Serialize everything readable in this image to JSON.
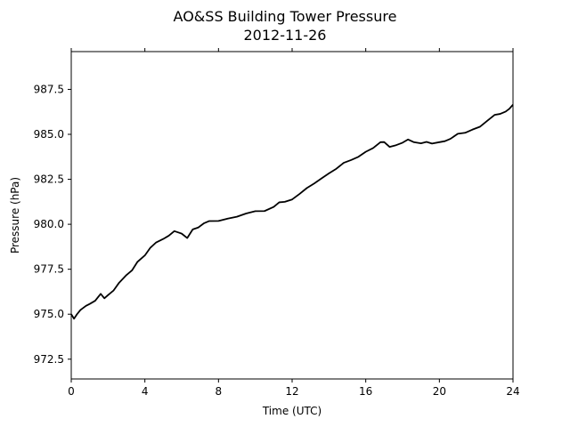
{
  "chart_data": {
    "type": "line",
    "title": "AO&SS Building Tower Pressure",
    "subtitle": "2012-11-26",
    "xlabel": "Time (UTC)",
    "ylabel": "Pressure (hPa)",
    "xlim": [
      0,
      24
    ],
    "ylim": [
      971.4,
      989.6
    ],
    "xticks": [
      0,
      4,
      8,
      12,
      16,
      20,
      24
    ],
    "xtick_labels": [
      "0",
      "4",
      "8",
      "12",
      "16",
      "20",
      "24"
    ],
    "yticks": [
      972.5,
      975.0,
      977.5,
      980.0,
      982.5,
      985.0,
      987.5
    ],
    "ytick_labels": [
      "972.5",
      "975.0",
      "977.5",
      "980.0",
      "982.5",
      "985.0",
      "987.5"
    ],
    "grid": false,
    "series": [
      {
        "color": "#000000",
        "x": [
          0,
          0.15,
          0.3,
          0.5,
          0.8,
          1.0,
          1.3,
          1.6,
          1.8,
          2.0,
          2.3,
          2.6,
          3.0,
          3.3,
          3.6,
          4.0,
          4.3,
          4.6,
          5.0,
          5.3,
          5.6,
          5.8,
          6.0,
          6.3,
          6.6,
          6.9,
          7.2,
          7.5,
          8.0,
          8.5,
          9.0,
          9.5,
          10.0,
          10.5,
          11.0,
          11.3,
          11.6,
          12.0,
          12.4,
          12.8,
          13.2,
          13.6,
          14.0,
          14.4,
          14.8,
          15.2,
          15.6,
          16.0,
          16.4,
          16.8,
          17.0,
          17.3,
          17.6,
          18.0,
          18.3,
          18.6,
          19.0,
          19.3,
          19.6,
          20.0,
          20.3,
          20.6,
          21.0,
          21.4,
          21.8,
          22.2,
          22.6,
          23.0,
          23.3,
          23.6,
          23.8,
          24.0
        ],
        "y": [
          975.0,
          974.75,
          974.95,
          975.25,
          975.45,
          975.6,
          975.75,
          976.1,
          975.9,
          976.05,
          976.35,
          976.75,
          977.15,
          977.45,
          977.9,
          978.3,
          978.7,
          978.95,
          979.2,
          979.35,
          979.65,
          979.55,
          979.45,
          979.25,
          979.7,
          979.85,
          980.05,
          980.15,
          980.2,
          980.3,
          980.45,
          980.6,
          980.7,
          980.75,
          980.95,
          981.25,
          981.25,
          981.35,
          981.7,
          982.0,
          982.3,
          982.55,
          982.8,
          983.1,
          983.4,
          983.6,
          983.75,
          984.0,
          984.25,
          984.55,
          984.6,
          984.3,
          984.35,
          984.55,
          984.7,
          984.6,
          984.5,
          984.55,
          984.5,
          984.55,
          984.65,
          984.75,
          985.0,
          985.1,
          985.25,
          985.45,
          985.75,
          986.05,
          986.15,
          986.25,
          986.45,
          986.65
        ]
      }
    ]
  }
}
